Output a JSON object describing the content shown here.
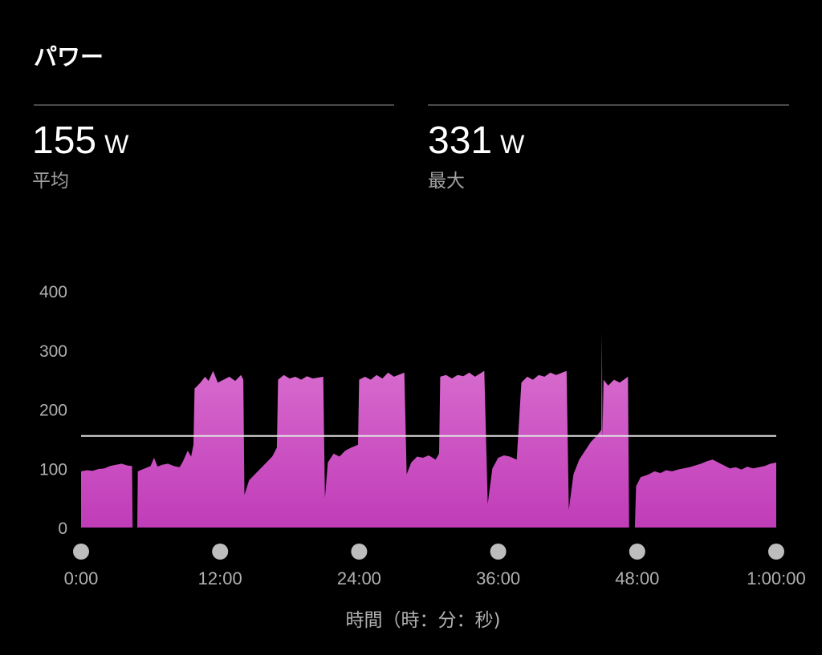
{
  "header": {
    "title": "パワー"
  },
  "stats": [
    {
      "value": "155",
      "unit": "W",
      "label": "平均"
    },
    {
      "value": "331",
      "unit": "W",
      "label": "最大"
    }
  ],
  "colors": {
    "fill_top": "#dc74d2",
    "fill_bottom": "#c03cb8",
    "avg_line": "#e0e0e0",
    "axis_dot": "#bdbdbd"
  },
  "chart_data": {
    "type": "area",
    "xlabel": "時間（時：分：秒)",
    "ylabel": "",
    "xlim": [
      0,
      60
    ],
    "ylim": [
      0,
      400
    ],
    "y_ticks": [
      0,
      100,
      200,
      300,
      400
    ],
    "y_tick_labels": [
      "0",
      "100",
      "200",
      "300",
      "400"
    ],
    "x_ticks": [
      0,
      12,
      24,
      36,
      48,
      60
    ],
    "x_tick_labels": [
      "0:00",
      "12:00",
      "24:00",
      "36:00",
      "48:00",
      "1:00:00"
    ],
    "grid": false,
    "reference_line": {
      "value": 155,
      "meaning": "average"
    },
    "x_unit": "minutes",
    "series": [
      {
        "points": [
          [
            0,
            95
          ],
          [
            0.5,
            97
          ],
          [
            1,
            96
          ],
          [
            1.5,
            99
          ],
          [
            2,
            100
          ],
          [
            2.5,
            104
          ],
          [
            3,
            106
          ],
          [
            3.5,
            108
          ],
          [
            4,
            105
          ],
          [
            4.4,
            104
          ],
          [
            4.45,
            0
          ],
          [
            4.85,
            0
          ],
          [
            4.9,
            95
          ],
          [
            5.5,
            100
          ],
          [
            6,
            104
          ],
          [
            6.3,
            118
          ],
          [
            6.6,
            103
          ],
          [
            7,
            106
          ],
          [
            7.5,
            108
          ],
          [
            8,
            104
          ],
          [
            8.5,
            102
          ],
          [
            8.8,
            112
          ],
          [
            9.2,
            130
          ],
          [
            9.5,
            120
          ],
          [
            9.7,
            140
          ],
          [
            9.8,
            235
          ],
          [
            10.3,
            245
          ],
          [
            10.7,
            255
          ],
          [
            11,
            248
          ],
          [
            11.4,
            265
          ],
          [
            11.8,
            245
          ],
          [
            12.3,
            250
          ],
          [
            12.8,
            255
          ],
          [
            13.3,
            248
          ],
          [
            13.8,
            258
          ],
          [
            14.0,
            250
          ],
          [
            14.1,
            55
          ],
          [
            14.5,
            80
          ],
          [
            15,
            90
          ],
          [
            15.5,
            100
          ],
          [
            16,
            110
          ],
          [
            16.5,
            120
          ],
          [
            16.9,
            135
          ],
          [
            17.0,
            250
          ],
          [
            17.5,
            258
          ],
          [
            18,
            252
          ],
          [
            18.5,
            255
          ],
          [
            19,
            250
          ],
          [
            19.5,
            256
          ],
          [
            20,
            252
          ],
          [
            20.9,
            255
          ],
          [
            21.05,
            50
          ],
          [
            21.3,
            110
          ],
          [
            21.8,
            125
          ],
          [
            22.3,
            120
          ],
          [
            22.8,
            130
          ],
          [
            23.3,
            135
          ],
          [
            23.9,
            140
          ],
          [
            24.0,
            250
          ],
          [
            24.5,
            255
          ],
          [
            25,
            250
          ],
          [
            25.5,
            258
          ],
          [
            26,
            252
          ],
          [
            26.5,
            262
          ],
          [
            27,
            255
          ],
          [
            27.9,
            262
          ],
          [
            28.1,
            90
          ],
          [
            28.5,
            110
          ],
          [
            29,
            120
          ],
          [
            29.5,
            118
          ],
          [
            30,
            122
          ],
          [
            30.6,
            115
          ],
          [
            30.9,
            125
          ],
          [
            31.0,
            255
          ],
          [
            31.5,
            258
          ],
          [
            32,
            252
          ],
          [
            32.5,
            258
          ],
          [
            33,
            256
          ],
          [
            33.5,
            262
          ],
          [
            34,
            255
          ],
          [
            34.8,
            265
          ],
          [
            35.1,
            40
          ],
          [
            35.5,
            100
          ],
          [
            36,
            118
          ],
          [
            36.5,
            122
          ],
          [
            37,
            120
          ],
          [
            37.6,
            115
          ],
          [
            38.0,
            245
          ],
          [
            38.5,
            255
          ],
          [
            39,
            250
          ],
          [
            39.5,
            258
          ],
          [
            40,
            255
          ],
          [
            40.5,
            262
          ],
          [
            41,
            258
          ],
          [
            41.9,
            265
          ],
          [
            42.1,
            30
          ],
          [
            42.5,
            90
          ],
          [
            43,
            115
          ],
          [
            43.5,
            130
          ],
          [
            44,
            145
          ],
          [
            44.5,
            155
          ],
          [
            44.9,
            165
          ],
          [
            44.95,
            331
          ],
          [
            45.0,
            150
          ],
          [
            45.1,
            250
          ],
          [
            45.5,
            240
          ],
          [
            46,
            250
          ],
          [
            46.5,
            245
          ],
          [
            47.2,
            255
          ],
          [
            47.3,
            0
          ],
          [
            47.8,
            0
          ],
          [
            47.9,
            70
          ],
          [
            48.3,
            85
          ],
          [
            49,
            90
          ],
          [
            49.5,
            95
          ],
          [
            50,
            92
          ],
          [
            50.5,
            97
          ],
          [
            51,
            95
          ],
          [
            51.5,
            98
          ],
          [
            52,
            100
          ],
          [
            52.5,
            102
          ],
          [
            53,
            105
          ],
          [
            53.5,
            108
          ],
          [
            54,
            112
          ],
          [
            54.5,
            115
          ],
          [
            55,
            110
          ],
          [
            55.5,
            105
          ],
          [
            56,
            100
          ],
          [
            56.5,
            102
          ],
          [
            57,
            98
          ],
          [
            57.5,
            103
          ],
          [
            58,
            100
          ],
          [
            58.5,
            102
          ],
          [
            59,
            104
          ],
          [
            59.5,
            108
          ],
          [
            60,
            110
          ]
        ]
      }
    ]
  }
}
